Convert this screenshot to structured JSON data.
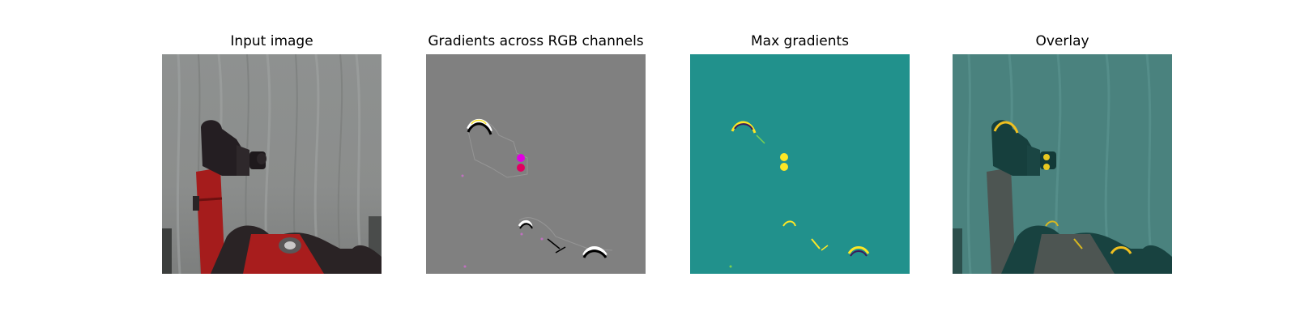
{
  "figure": {
    "panels": [
      {
        "title": "Input image"
      },
      {
        "title": "Gradients across RGB channels"
      },
      {
        "title": "Max gradients"
      },
      {
        "title": "Overlay"
      }
    ]
  },
  "colors": {
    "background": "#ffffff",
    "gradient_gray": "#808080",
    "viridis_teal": "#21918c",
    "viridis_yellow": "#fde725",
    "overlay_teal": "#4a827e",
    "robot_red": "#a81d1d",
    "robot_black": "#241e22",
    "curtain_gray": "#8a8c8b"
  }
}
